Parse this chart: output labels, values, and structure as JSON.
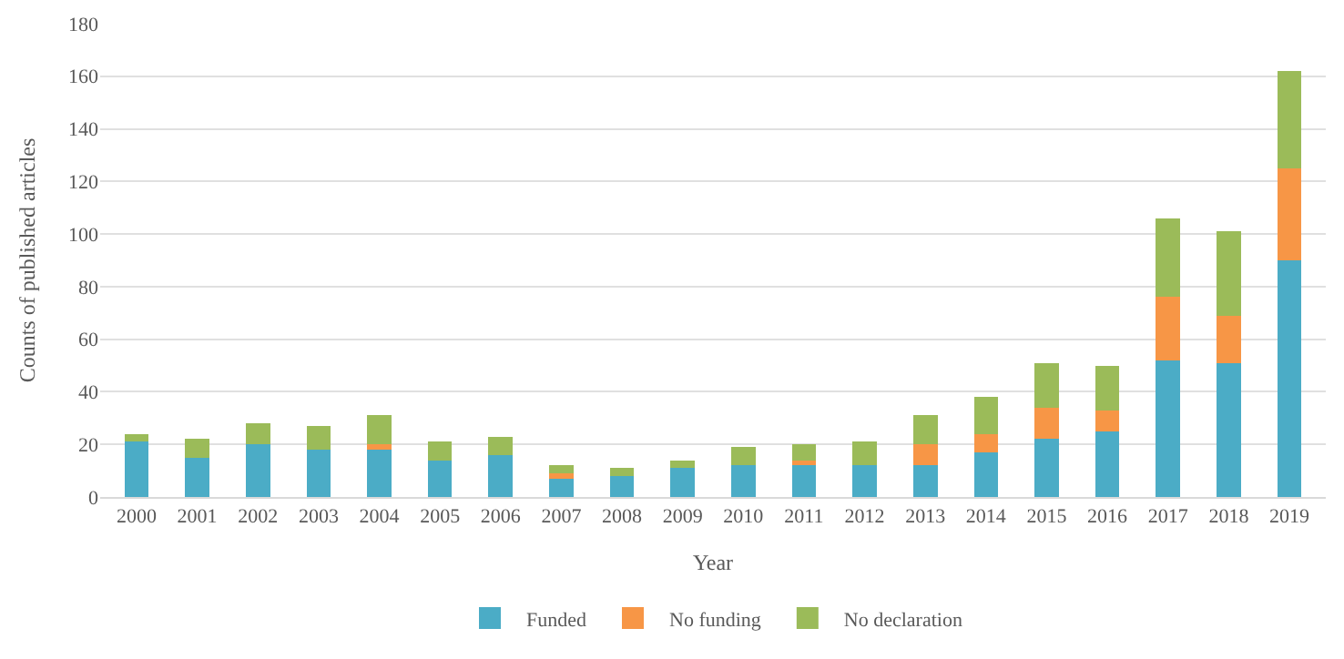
{
  "chart_data": {
    "type": "bar",
    "stacked": true,
    "xlabel": "Year",
    "ylabel": "Counts of published articles",
    "categories": [
      "2000",
      "2001",
      "2002",
      "2003",
      "2004",
      "2005",
      "2006",
      "2007",
      "2008",
      "2009",
      "2010",
      "2011",
      "2012",
      "2013",
      "2014",
      "2015",
      "2016",
      "2017",
      "2018",
      "2019"
    ],
    "series": [
      {
        "name": "Funded",
        "color": "#4bacc6",
        "values": [
          21,
          15,
          20,
          18,
          18,
          14,
          16,
          7,
          8,
          11,
          12,
          12,
          12,
          12,
          17,
          22,
          25,
          52,
          51,
          90
        ]
      },
      {
        "name": "No funding",
        "color": "#f79646",
        "values": [
          0,
          0,
          0,
          0,
          2,
          0,
          0,
          2,
          0,
          0,
          0,
          2,
          0,
          8,
          7,
          12,
          8,
          24,
          18,
          35
        ]
      },
      {
        "name": "No declaration",
        "color": "#9bbb59",
        "values": [
          3,
          7,
          8,
          9,
          11,
          7,
          7,
          3,
          3,
          3,
          7,
          6,
          9,
          11,
          14,
          17,
          17,
          30,
          32,
          37
        ]
      }
    ],
    "ylim": [
      0,
      180
    ],
    "yticks": [
      0,
      20,
      40,
      60,
      80,
      100,
      120,
      140,
      160,
      180
    ],
    "grid": "y",
    "legend": "bottom"
  }
}
